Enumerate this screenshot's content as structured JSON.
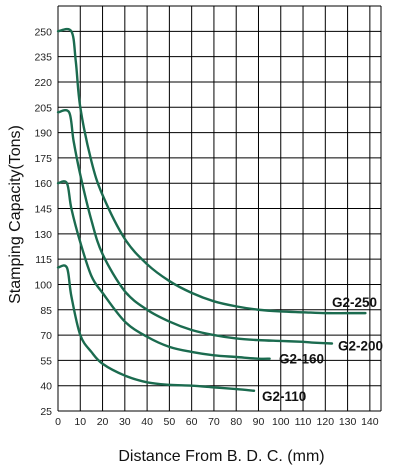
{
  "chart_data": {
    "type": "line",
    "title": "",
    "xlabel": "Distance From B. D. C. (mm)",
    "ylabel": "Stamping Capacity(Tons)",
    "xlim": [
      0,
      145
    ],
    "ylim": [
      25,
      265
    ],
    "x_ticks": [
      0,
      10,
      20,
      30,
      40,
      50,
      60,
      70,
      80,
      90,
      100,
      110,
      120,
      130,
      140
    ],
    "y_ticks": [
      25,
      40,
      55,
      70,
      85,
      100,
      115,
      130,
      145,
      160,
      175,
      190,
      205,
      220,
      235,
      250
    ],
    "grid": true,
    "line_color": "#1b6b4f",
    "series": [
      {
        "name": "G2-250",
        "x": [
          0,
          6,
          8,
          10,
          15,
          20,
          30,
          40,
          50,
          60,
          70,
          80,
          90,
          100,
          110,
          120,
          130,
          138
        ],
        "y": [
          250,
          250,
          232,
          205,
          173,
          153,
          127,
          112,
          102,
          95,
          90,
          87,
          85,
          84,
          83.5,
          83,
          83,
          83
        ]
      },
      {
        "name": "G2-200",
        "x": [
          0,
          5,
          7,
          10,
          15,
          20,
          30,
          40,
          50,
          60,
          70,
          80,
          90,
          100,
          110,
          115,
          123
        ],
        "y": [
          202,
          202,
          185,
          165,
          138,
          118,
          96,
          85,
          78,
          73,
          70,
          68,
          67,
          66.5,
          66,
          65.5,
          65
        ]
      },
      {
        "name": "G2-160",
        "x": [
          0,
          4,
          6,
          10,
          15,
          20,
          30,
          40,
          50,
          60,
          70,
          80,
          90,
          95
        ],
        "y": [
          160,
          160,
          145,
          125,
          105,
          95,
          78,
          69,
          63,
          60,
          58,
          57,
          56,
          56
        ]
      },
      {
        "name": "G2-110",
        "x": [
          0,
          4,
          6,
          10,
          15,
          20,
          30,
          40,
          50,
          60,
          70,
          80,
          88
        ],
        "y": [
          110,
          110,
          93,
          70,
          60,
          53,
          46,
          42,
          40.5,
          40,
          39,
          38,
          37
        ]
      }
    ]
  }
}
